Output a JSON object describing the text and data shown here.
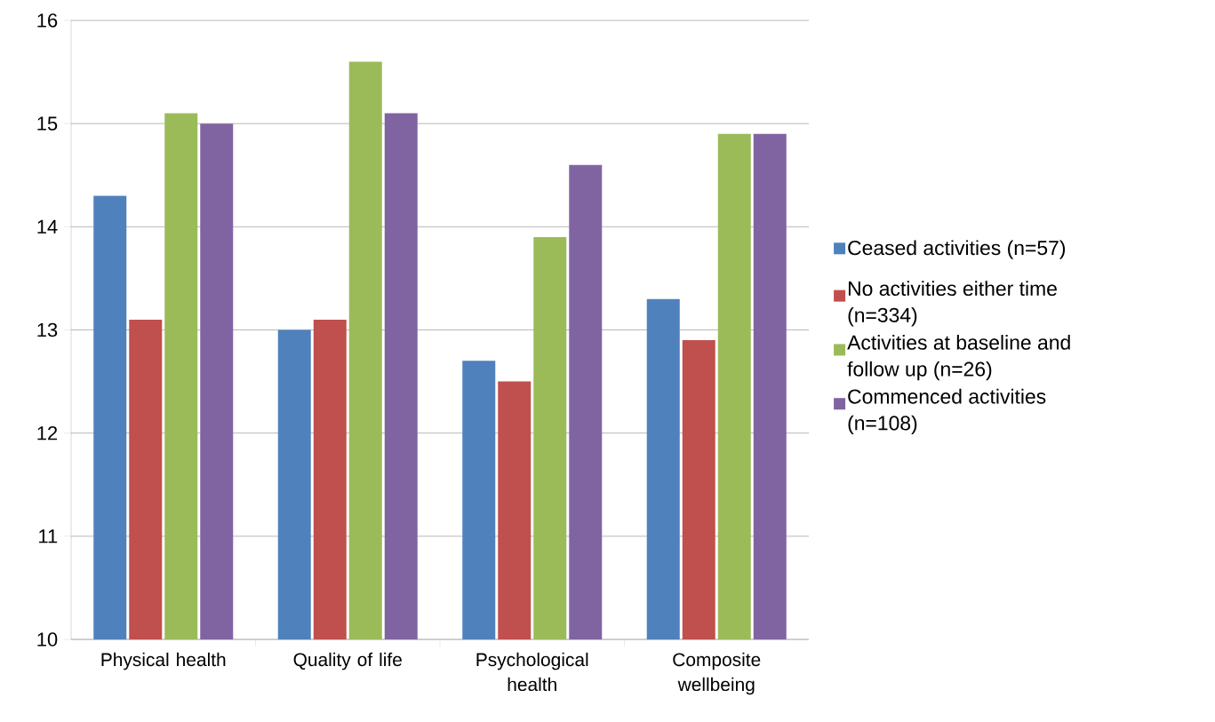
{
  "chart_data": {
    "type": "bar",
    "categories": [
      "Physical health",
      "Quality of life",
      "Psychological health",
      "Composite wellbeing"
    ],
    "series": [
      {
        "name": "Ceased activities (n=57)",
        "color": "#4f81bd",
        "values": [
          14.3,
          13.0,
          12.7,
          13.3
        ]
      },
      {
        "name": "No activities either time (n=334)",
        "color": "#c0504d",
        "values": [
          13.1,
          13.1,
          12.5,
          12.9
        ]
      },
      {
        "name": "Activities at baseline and follow up (n=26)",
        "color": "#9bbb59",
        "values": [
          15.1,
          15.6,
          13.9,
          14.9
        ]
      },
      {
        "name": "Commenced activities (n=108)",
        "color": "#8064a2",
        "values": [
          15.0,
          15.1,
          14.6,
          14.9
        ]
      }
    ],
    "ylim": [
      10,
      16
    ],
    "yticks": [
      10,
      11,
      12,
      13,
      14,
      15,
      16
    ],
    "grid": "y",
    "legend": "right"
  }
}
